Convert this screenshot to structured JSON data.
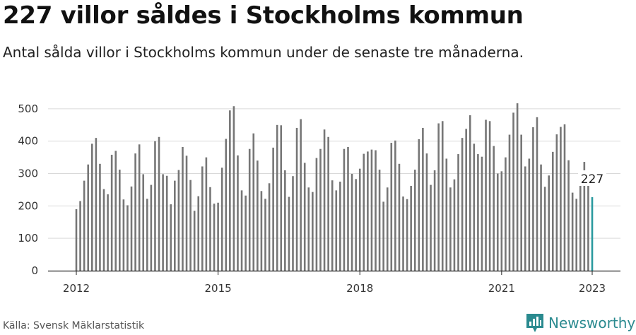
{
  "header": {
    "title": "227 villor såldes i Stockholms kommun",
    "subtitle": "Antal sålda villor i Stockholms kommun under de senaste tre månaderna."
  },
  "footer": {
    "source": "Källa: Svensk Mäklarstatistik",
    "brand": "Newsworthy",
    "brand_icon": "bar-chart-logo-icon",
    "brand_color": "#2a8a8f"
  },
  "chart_data": {
    "type": "bar",
    "title": "227 villor såldes i Stockholms kommun",
    "subtitle": "Antal sålda villor i Stockholms kommun under de senaste tre månaderna.",
    "xlabel": "",
    "ylabel": "",
    "ylim": [
      0,
      550
    ],
    "yticks": [
      0,
      100,
      200,
      300,
      400,
      500
    ],
    "xticks": [
      "2012",
      "2015",
      "2018",
      "2021",
      "2023"
    ],
    "grid": true,
    "legend": "none",
    "bar_color": "#767676",
    "highlight_color": "#2a9a9f",
    "highlight_label": "227",
    "series": [
      {
        "values": [
          190,
          215,
          278,
          328,
          392,
          410,
          330,
          252,
          236,
          358,
          370,
          312,
          220,
          202,
          260,
          362,
          390,
          298,
          222,
          265,
          400,
          413,
          298,
          293,
          205,
          278,
          311,
          382,
          355,
          280,
          185,
          230,
          322,
          350,
          258,
          207,
          210,
          318,
          407,
          495,
          508,
          356,
          248,
          232,
          376,
          424,
          340,
          246,
          222,
          270,
          380,
          450,
          449,
          310,
          228,
          292,
          441,
          468,
          333,
          257,
          243,
          348,
          376,
          436,
          413,
          279,
          248,
          275,
          376,
          382,
          299,
          283,
          315,
          361,
          368,
          374,
          372,
          312,
          213,
          257,
          395,
          402,
          330,
          229,
          221,
          262,
          312,
          406,
          441,
          362,
          265,
          310,
          455,
          462,
          346,
          257,
          282,
          360,
          410,
          438,
          480,
          392,
          360,
          352,
          466,
          462,
          385,
          300,
          307,
          350,
          420,
          488,
          517,
          420,
          322,
          346,
          443,
          474,
          328,
          259,
          294,
          367,
          421,
          444,
          452,
          341,
          241,
          222,
          300,
          336,
          262,
          227
        ]
      }
    ]
  }
}
